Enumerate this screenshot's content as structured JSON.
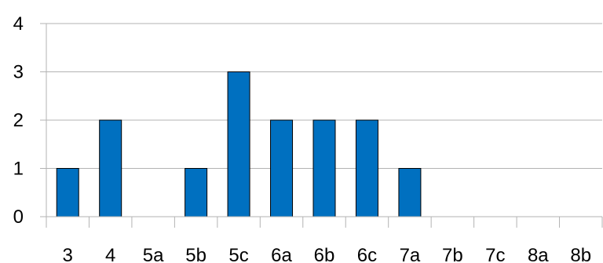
{
  "chart_data": {
    "type": "bar",
    "title": "",
    "xlabel": "",
    "ylabel": "",
    "categories": [
      "3",
      "4",
      "5a",
      "5b",
      "5c",
      "6a",
      "6b",
      "6c",
      "7a",
      "7b",
      "7c",
      "8a",
      "8b"
    ],
    "values": [
      1,
      2,
      0,
      1,
      3,
      2,
      2,
      2,
      1,
      0,
      0,
      0,
      0
    ],
    "ylim": [
      0,
      4
    ],
    "yticks": [
      "0",
      "1",
      "2",
      "3",
      "4"
    ],
    "grid": true,
    "legend": "none",
    "colors": {
      "bar": "#0070C0",
      "bar_edge": "#000000",
      "grid": "#B3B3B3",
      "axis": "#B3B3B3",
      "text": "#000000"
    }
  }
}
